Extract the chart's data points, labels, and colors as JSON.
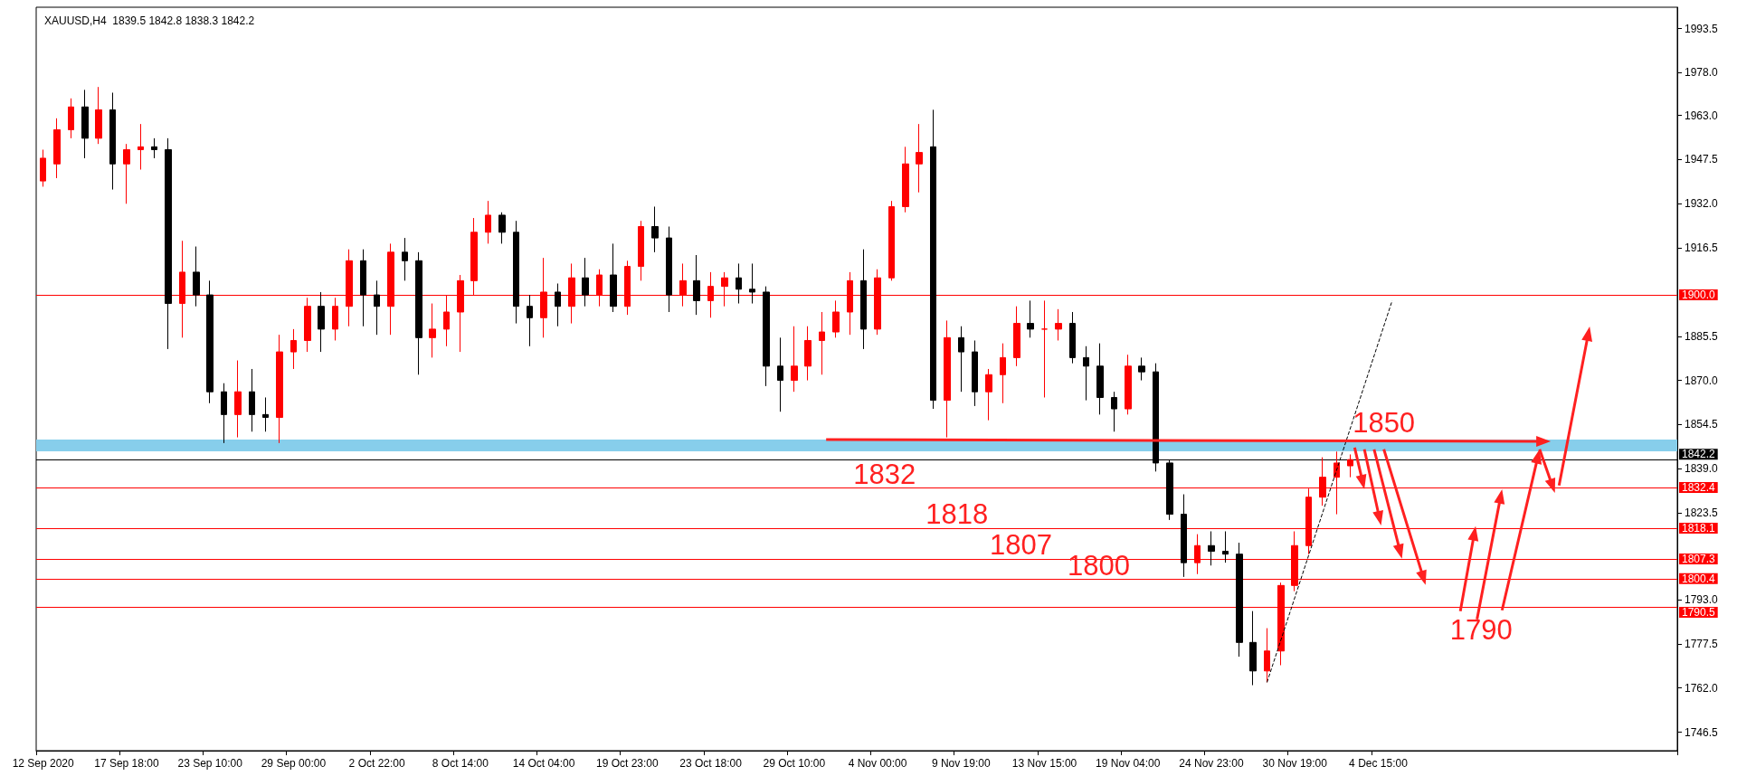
{
  "chart_data": {
    "type": "candlestick",
    "title": "XAUUSD,H4  1839.5 1842.8 1838.3 1842.2",
    "categories": [
      "12 Sep 2020",
      null,
      null,
      null,
      null,
      null,
      "17 Sep 18:00",
      null,
      null,
      null,
      null,
      null,
      "23 Sep 10:00",
      null,
      null,
      null,
      null,
      null,
      "29 Sep 00:00",
      null,
      null,
      null,
      null,
      null,
      "2 Oct 22:00",
      null,
      null,
      null,
      null,
      null,
      "8 Oct 14:00",
      null,
      null,
      null,
      null,
      null,
      "14 Oct 04:00",
      null,
      null,
      null,
      null,
      null,
      "19 Oct 23:00",
      null,
      null,
      null,
      null,
      null,
      "23 Oct 18:00",
      null,
      null,
      null,
      null,
      null,
      "29 Oct 10:00",
      null,
      null,
      null,
      null,
      null,
      "4 Nov 00:00",
      null,
      null,
      null,
      null,
      null,
      "9 Nov 19:00",
      null,
      null,
      null,
      null,
      null,
      "13 Nov 15:00",
      null,
      null,
      null,
      null,
      null,
      "19 Nov 04:00",
      null,
      null,
      null,
      null,
      null,
      "24 Nov 23:00",
      null,
      null,
      null,
      null,
      null,
      "30 Nov 19:00",
      null,
      null,
      null,
      null,
      null,
      "4 Dec 15:00",
      null,
      null,
      null,
      null,
      null,
      null,
      null,
      null,
      null,
      null,
      null,
      null,
      null,
      null,
      null,
      null,
      null,
      null,
      null,
      null,
      null
    ],
    "ohlc": [
      [
        1940,
        1951,
        1938,
        1948
      ],
      [
        1946,
        1962,
        1941,
        1958
      ],
      [
        1958,
        1969,
        1955,
        1966
      ],
      [
        1966,
        1972,
        1948,
        1955
      ],
      [
        1955,
        1973,
        1953,
        1965
      ],
      [
        1965,
        1971,
        1937,
        1946
      ],
      [
        1946,
        1953,
        1932,
        1951
      ],
      [
        1951,
        1960,
        1944,
        1952
      ],
      [
        1952,
        1955,
        1948,
        1951
      ],
      [
        1951,
        1955,
        1881,
        1897
      ],
      [
        1897,
        1919,
        1885,
        1908
      ],
      [
        1908,
        1917,
        1896,
        1900
      ],
      [
        1900,
        1905,
        1862,
        1866
      ],
      [
        1866,
        1869,
        1848,
        1858
      ],
      [
        1858,
        1877,
        1850,
        1866
      ],
      [
        1866,
        1874,
        1852,
        1858
      ],
      [
        1858,
        1864,
        1852,
        1857
      ],
      [
        1857,
        1886,
        1848,
        1880
      ],
      [
        1880,
        1888,
        1874,
        1884
      ],
      [
        1884,
        1899,
        1880,
        1896
      ],
      [
        1896,
        1901,
        1880,
        1888
      ],
      [
        1888,
        1899,
        1884,
        1896
      ],
      [
        1896,
        1916,
        1889,
        1912
      ],
      [
        1912,
        1916,
        1889,
        1900
      ],
      [
        1900,
        1905,
        1886,
        1896
      ],
      [
        1896,
        1918,
        1886,
        1915
      ],
      [
        1915,
        1920,
        1905,
        1912
      ],
      [
        1912,
        1915,
        1872,
        1885
      ],
      [
        1885,
        1897,
        1878,
        1888
      ],
      [
        1888,
        1900,
        1882,
        1894
      ],
      [
        1894,
        1907,
        1880,
        1905
      ],
      [
        1905,
        1927,
        1900,
        1922
      ],
      [
        1922,
        1933,
        1918,
        1928
      ],
      [
        1928,
        1929,
        1918,
        1922
      ],
      [
        1922,
        1926,
        1890,
        1896
      ],
      [
        1896,
        1900,
        1882,
        1892
      ],
      [
        1892,
        1913,
        1885,
        1901
      ],
      [
        1901,
        1904,
        1889,
        1896
      ],
      [
        1896,
        1911,
        1890,
        1906
      ],
      [
        1906,
        1913,
        1896,
        1900
      ],
      [
        1900,
        1909,
        1896,
        1907
      ],
      [
        1907,
        1918,
        1894,
        1896
      ],
      [
        1896,
        1912,
        1893,
        1910
      ],
      [
        1910,
        1926,
        1905,
        1924
      ],
      [
        1924,
        1931,
        1915,
        1920
      ],
      [
        1920,
        1924,
        1894,
        1900
      ],
      [
        1900,
        1911,
        1896,
        1905
      ],
      [
        1905,
        1914,
        1893,
        1898
      ],
      [
        1898,
        1908,
        1892,
        1903
      ],
      [
        1903,
        1908,
        1896,
        1906
      ],
      [
        1906,
        1911,
        1897,
        1902
      ],
      [
        1902,
        1911,
        1897,
        1901
      ],
      [
        1901,
        1903,
        1868,
        1875
      ],
      [
        1875,
        1885,
        1859,
        1870
      ],
      [
        1870,
        1889,
        1866,
        1875
      ],
      [
        1875,
        1889,
        1870,
        1884
      ],
      [
        1884,
        1894,
        1872,
        1887
      ],
      [
        1887,
        1898,
        1885,
        1894
      ],
      [
        1894,
        1908,
        1886,
        1905
      ],
      [
        1905,
        1916,
        1881,
        1888
      ],
      [
        1888,
        1909,
        1886,
        1906
      ],
      [
        1906,
        1933,
        1905,
        1931
      ],
      [
        1931,
        1952,
        1929,
        1946
      ],
      [
        1946,
        1960,
        1936,
        1950
      ],
      [
        1952,
        1965,
        1860,
        1863
      ],
      [
        1863,
        1891,
        1850,
        1885
      ],
      [
        1885,
        1889,
        1866,
        1880
      ],
      [
        1880,
        1884,
        1861,
        1866
      ],
      [
        1866,
        1874,
        1856,
        1872
      ],
      [
        1872,
        1883,
        1862,
        1878
      ],
      [
        1878,
        1896,
        1875,
        1890
      ],
      [
        1890,
        1898,
        1885,
        1888
      ],
      [
        1888,
        1898,
        1864,
        1888
      ],
      [
        1888,
        1895,
        1884,
        1890
      ],
      [
        1890,
        1894,
        1876,
        1878
      ],
      [
        1878,
        1882,
        1863,
        1875
      ],
      [
        1875,
        1883,
        1858,
        1864
      ],
      [
        1864,
        1866,
        1852,
        1860
      ],
      [
        1860,
        1879,
        1858,
        1875
      ],
      [
        1875,
        1878,
        1870,
        1873
      ],
      [
        1873,
        1876,
        1838,
        1841
      ],
      [
        1841,
        1842,
        1821,
        1823
      ],
      [
        1823,
        1830,
        1801,
        1806
      ],
      [
        1806,
        1816,
        1802,
        1812
      ],
      [
        1812,
        1817,
        1805,
        1810
      ],
      [
        1810,
        1817,
        1806,
        1809
      ],
      [
        1809,
        1813,
        1773,
        1778
      ],
      [
        1778,
        1789,
        1763,
        1768
      ],
      [
        1768,
        1783,
        1764,
        1775
      ],
      [
        1775,
        1799,
        1770,
        1798
      ],
      [
        1798,
        1817,
        1796,
        1812
      ],
      [
        1812,
        1832,
        1809,
        1829
      ],
      [
        1829,
        1843,
        1826,
        1836
      ],
      [
        1836,
        1845,
        1823,
        1841
      ],
      [
        1840,
        1844,
        1836,
        1842.2
      ],
      null,
      null,
      null,
      null,
      null,
      null,
      null,
      null,
      null,
      null,
      null,
      null,
      null,
      null,
      null,
      null,
      null,
      null,
      null,
      null,
      null,
      null,
      null
    ],
    "colors": [
      "#ff0000",
      "#ff0000",
      "#ff0000",
      "#000000",
      "#ff0000",
      "#000000",
      "#ff0000",
      "#ff0000",
      "#000000",
      "#000000",
      "#ff0000",
      "#000000",
      "#000000",
      "#000000",
      "#ff0000",
      "#000000",
      "#000000",
      "#ff0000",
      "#ff0000",
      "#ff0000",
      "#000000",
      "#ff0000",
      "#ff0000",
      "#000000",
      "#000000",
      "#ff0000",
      "#000000",
      "#000000",
      "#ff0000",
      "#ff0000",
      "#ff0000",
      "#ff0000",
      "#ff0000",
      "#000000",
      "#000000",
      "#000000",
      "#ff0000",
      "#000000",
      "#ff0000",
      "#000000",
      "#ff0000",
      "#000000",
      "#ff0000",
      "#ff0000",
      "#000000",
      "#000000",
      "#ff0000",
      "#000000",
      "#ff0000",
      "#ff0000",
      "#000000",
      "#000000",
      "#000000",
      "#000000",
      "#ff0000",
      "#ff0000",
      "#ff0000",
      "#ff0000",
      "#ff0000",
      "#000000",
      "#ff0000",
      "#ff0000",
      "#ff0000",
      "#ff0000",
      "#000000",
      "#ff0000",
      "#000000",
      "#000000",
      "#ff0000",
      "#ff0000",
      "#ff0000",
      "#000000",
      "#ff0000",
      "#ff0000",
      "#000000",
      "#000000",
      "#000000",
      "#000000",
      "#ff0000",
      "#000000",
      "#000000",
      "#000000",
      "#000000",
      "#ff0000",
      "#000000",
      "#000000",
      "#000000",
      "#000000",
      "#ff0000",
      "#ff0000",
      "#ff0000",
      "#ff0000",
      "#ff0000",
      "#ff0000",
      "#ff0000",
      null,
      null,
      null,
      null,
      null,
      null,
      null,
      null,
      null,
      null,
      null,
      null,
      null,
      null,
      null,
      null,
      null,
      null,
      null,
      null,
      null,
      null,
      null
    ],
    "series": [
      {
        "type": "line",
        "color": "#000000",
        "line_style": "dashed",
        "marker": "none",
        "values": [
          null,
          null,
          null,
          null,
          null,
          null,
          null,
          null,
          null,
          null,
          null,
          null,
          null,
          null,
          null,
          null,
          null,
          null,
          null,
          null,
          null,
          null,
          null,
          null,
          null,
          null,
          null,
          null,
          null,
          null,
          null,
          null,
          null,
          null,
          null,
          null,
          null,
          null,
          null,
          null,
          null,
          null,
          null,
          null,
          null,
          null,
          null,
          null,
          null,
          null,
          null,
          null,
          null,
          null,
          null,
          null,
          null,
          null,
          null,
          null,
          null,
          null,
          null,
          null,
          null,
          null,
          null,
          null,
          null,
          null,
          null,
          null,
          null,
          null,
          null,
          null,
          null,
          null,
          null,
          null,
          null,
          null,
          null,
          null,
          null,
          null,
          null,
          null,
          1764,
          null,
          null,
          null,
          null,
          null,
          null,
          null,
          null,
          1898,
          null,
          null,
          null,
          null,
          null,
          null,
          null,
          null,
          null,
          null,
          null,
          null,
          null,
          null,
          null,
          null,
          null,
          null,
          null,
          null
        ]
      }
    ],
    "ylim": [
      1740,
      2001
    ],
    "yticks": [
      {
        "value": 1746.5,
        "label": "1746.5"
      },
      {
        "value": 1762,
        "label": "1762.0"
      },
      {
        "value": 1777.5,
        "label": "1777.5"
      },
      {
        "value": 1793,
        "label": "1793.0"
      },
      {
        "value": 1823.5,
        "label": "1823.5"
      },
      {
        "value": 1839,
        "label": "1839.0"
      },
      {
        "value": 1854.5,
        "label": "1854.5"
      },
      {
        "value": 1870,
        "label": "1870.0"
      },
      {
        "value": 1885.5,
        "label": "1885.5"
      },
      {
        "value": 1916.5,
        "label": "1916.5"
      },
      {
        "value": 1932,
        "label": "1932.0"
      },
      {
        "value": 1947.5,
        "label": "1947.5"
      },
      {
        "value": 1963,
        "label": "1963.0"
      },
      {
        "value": 1978,
        "label": "1978.0"
      },
      {
        "value": 1993.5,
        "label": "1993.5"
      }
    ],
    "ref_lines": [
      {
        "axis": "y",
        "value": 1900,
        "label": "1900.0",
        "color": "#ff0000"
      },
      {
        "axis": "y",
        "value": 1842.2,
        "label": "1842.2",
        "color": "#000000"
      },
      {
        "axis": "y",
        "value": 1832.4,
        "label": "1832.4",
        "color": "#ff0000"
      },
      {
        "axis": "y",
        "value": 1818.1,
        "label": "1818.1",
        "color": "#ff0000"
      },
      {
        "axis": "y",
        "value": 1807.3,
        "label": "1807.3",
        "color": "#ff0000"
      },
      {
        "axis": "y",
        "value": 1800.4,
        "label": "1800.4",
        "color": "#ff0000"
      },
      {
        "axis": "y",
        "value": 1790.5,
        "label": "1790.5",
        "color": "#ff0000"
      }
    ],
    "bands": [
      {
        "axis": "y",
        "from": 1845.1,
        "to": 1849.2,
        "color": "#87ceeb"
      }
    ],
    "annotations": [
      {
        "text": "1832",
        "y": 1832
      },
      {
        "text": "1818",
        "y": 1818
      },
      {
        "text": "1807",
        "y": 1807
      },
      {
        "text": "1800",
        "y": 1800
      },
      {
        "text": "1850",
        "y": 1850
      },
      {
        "text": "1790",
        "y": 1790
      }
    ]
  }
}
